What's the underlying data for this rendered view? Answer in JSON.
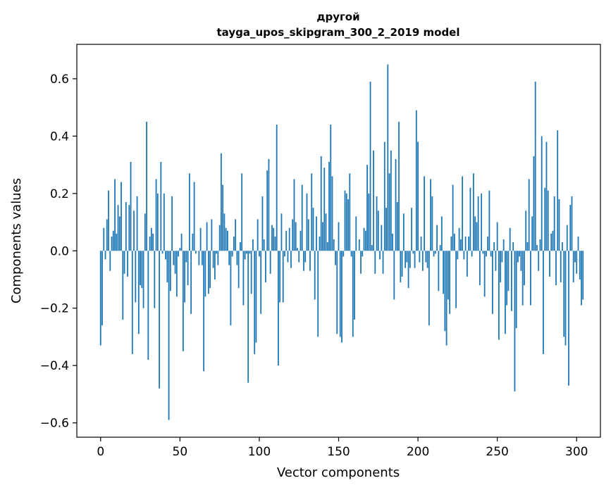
{
  "chart_data": {
    "type": "bar",
    "title_line1": "другой",
    "title_line2": "tayga_upos_skipgram_300_2_2019 model",
    "xlabel": "Vector components",
    "ylabel": "Components values",
    "xlim": [
      -15,
      315
    ],
    "ylim": [
      -0.65,
      0.72
    ],
    "xticks": [
      0,
      50,
      100,
      150,
      200,
      250,
      300
    ],
    "yticks": [
      -0.6,
      -0.4,
      -0.2,
      0.0,
      0.2,
      0.4,
      0.6
    ],
    "ytick_labels": [
      "−0.6",
      "−0.4",
      "−0.2",
      "0.0",
      "0.2",
      "0.4",
      "0.6"
    ],
    "bar_color": "#1f77b4",
    "values": [
      -0.33,
      -0.26,
      0.08,
      -0.03,
      0.11,
      0.21,
      -0.07,
      0.05,
      0.07,
      0.25,
      0.06,
      0.16,
      0.12,
      0.24,
      -0.24,
      -0.08,
      0.17,
      -0.09,
      0.16,
      0.31,
      -0.36,
      0.14,
      -0.18,
      0.19,
      -0.29,
      -0.12,
      -0.13,
      -0.2,
      0.13,
      0.45,
      -0.38,
      0.05,
      0.08,
      0.06,
      -0.2,
      0.25,
      0.2,
      -0.48,
      0.31,
      -0.01,
      0.2,
      -0.03,
      -0.11,
      -0.59,
      -0.14,
      0.19,
      -0.05,
      -0.08,
      -0.16,
      -0.02,
      0.01,
      0.06,
      -0.35,
      -0.18,
      -0.04,
      -0.12,
      0.27,
      -0.22,
      0.06,
      0.24,
      -0.01,
      0.0,
      -0.05,
      0.08,
      -0.05,
      -0.42,
      -0.16,
      0.1,
      -0.15,
      -0.13,
      0.11,
      -0.06,
      -0.1,
      -0.01,
      -0.05,
      0.09,
      0.34,
      0.23,
      0.13,
      0.08,
      0.07,
      -0.05,
      -0.26,
      -0.02,
      0.05,
      0.11,
      -0.05,
      -0.13,
      0.03,
      0.27,
      -0.19,
      -0.03,
      -0.01,
      -0.46,
      -0.01,
      -0.15,
      0.04,
      -0.36,
      -0.32,
      0.11,
      -0.02,
      -0.22,
      0.19,
      0.04,
      -0.11,
      0.28,
      0.32,
      -0.08,
      0.09,
      0.08,
      0.05,
      0.44,
      -0.4,
      -0.18,
      0.13,
      -0.18,
      -0.02,
      0.07,
      -0.04,
      0.08,
      -0.06,
      0.11,
      0.25,
      0.1,
      0.01,
      -0.04,
      0.07,
      0.23,
      -0.07,
      -0.04,
      0.2,
      0.11,
      -0.07,
      0.27,
      0.15,
      -0.17,
      0.12,
      -0.3,
      0.05,
      0.33,
      0.1,
      0.29,
      0.13,
      0.03,
      0.31,
      0.44,
      0.26,
      0.04,
      -0.05,
      -0.29,
      0.1,
      -0.3,
      -0.32,
      -0.02,
      0.21,
      0.2,
      0.18,
      0.27,
      -0.02,
      -0.3,
      -0.24,
      0.12,
      0.0,
      0.04,
      -0.08,
      -0.02,
      0.08,
      0.07,
      0.3,
      0.2,
      0.59,
      0.02,
      0.35,
      -0.08,
      0.19,
      0.14,
      -0.03,
      0.09,
      -0.08,
      0.38,
      0.15,
      0.65,
      0.27,
      0.35,
      0.06,
      -0.17,
      0.32,
      0.17,
      0.45,
      -0.11,
      -0.09,
      0.13,
      -0.06,
      -0.04,
      -0.13,
      -0.06,
      0.15,
      -0.01,
      -0.06,
      0.49,
      0.38,
      -0.04,
      0.05,
      -0.07,
      0.26,
      -0.04,
      -0.06,
      -0.26,
      0.25,
      0.19,
      -0.02,
      -0.01,
      0.09,
      -0.14,
      0.02,
      0.12,
      -0.15,
      -0.28,
      -0.33,
      -0.17,
      -0.22,
      0.05,
      0.23,
      0.06,
      -0.2,
      -0.03,
      0.08,
      0.04,
      0.26,
      -0.03,
      0.05,
      -0.09,
      0.05,
      0.22,
      -0.02,
      0.27,
      0.12,
      0.1,
      0.19,
      -0.12,
      0.2,
      -0.01,
      -0.16,
      -0.02,
      0.05,
      0.21,
      -0.02,
      -0.22,
      0.03,
      -0.07,
      0.1,
      -0.31,
      -0.11,
      -0.04,
      0.04,
      -0.29,
      -0.19,
      -0.14,
      0.08,
      -0.21,
      0.03,
      -0.49,
      -0.27,
      -0.04,
      -0.02,
      -0.07,
      -0.19,
      -0.12,
      0.14,
      0.03,
      0.25,
      -0.19,
      0.12,
      0.33,
      0.59,
      0.02,
      -0.07,
      0.04,
      0.4,
      -0.36,
      0.22,
      0.38,
      0.21,
      -0.09,
      0.06,
      0.07,
      0.19,
      -0.12,
      0.42,
      0.18,
      -0.11,
      0.03,
      -0.3,
      -0.33,
      0.09,
      -0.47,
      0.16,
      0.19,
      -0.11,
      -0.04,
      -0.08,
      0.05,
      -0.1,
      -0.19,
      -0.17
    ]
  }
}
